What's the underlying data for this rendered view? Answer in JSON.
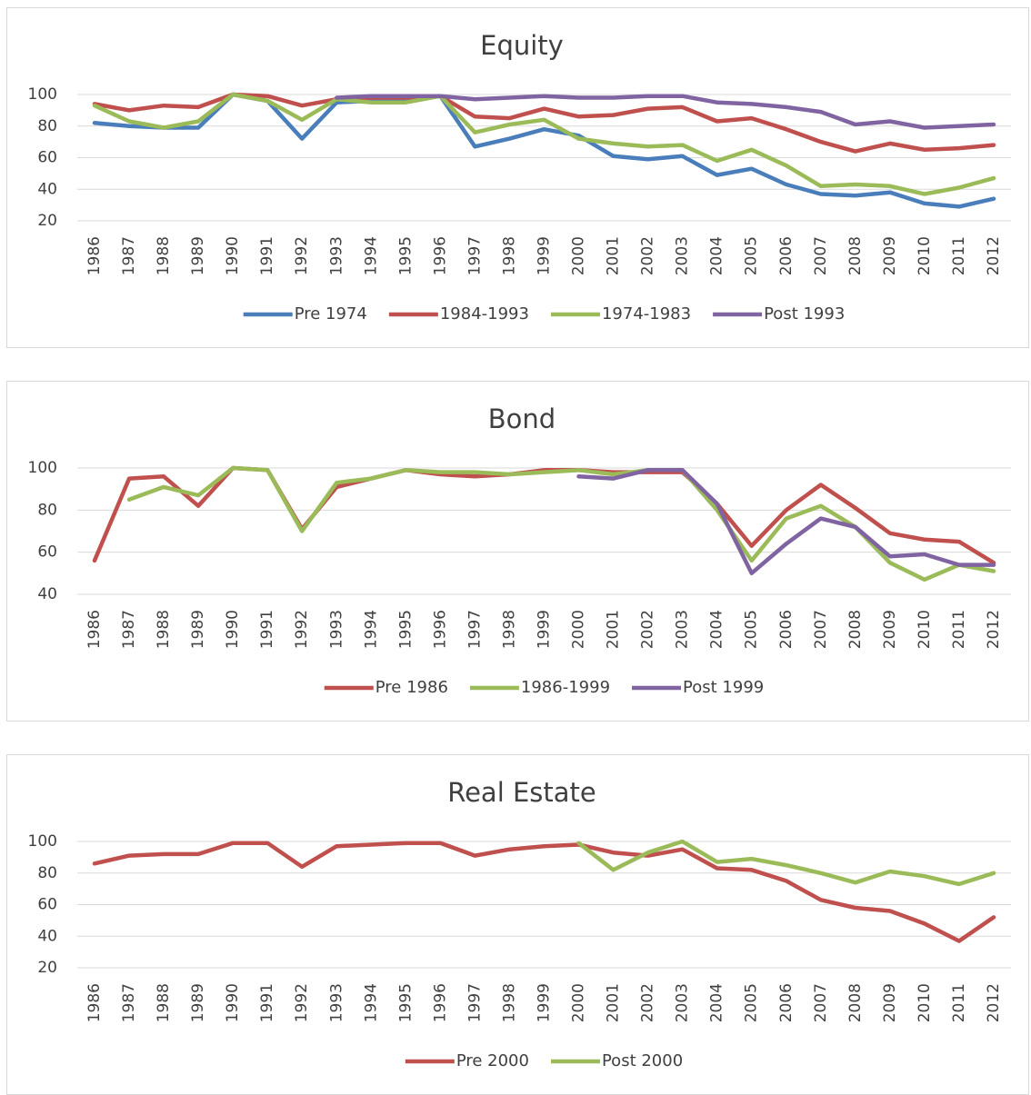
{
  "chart_data": [
    {
      "type": "line",
      "title": "Equity",
      "categories": [
        "1986",
        "1987",
        "1988",
        "1989",
        "1990",
        "1991",
        "1992",
        "1993",
        "1994",
        "1995",
        "1996",
        "1997",
        "1998",
        "1999",
        "2000",
        "2001",
        "2002",
        "2003",
        "2004",
        "2005",
        "2006",
        "2007",
        "2008",
        "2009",
        "2010",
        "2011",
        "2012"
      ],
      "series": [
        {
          "name": "Pre 1974",
          "color": "#4a7ebb",
          "values": [
            82,
            80,
            79,
            79,
            100,
            96,
            72,
            95,
            96,
            97,
            99,
            67,
            72,
            78,
            74,
            61,
            59,
            61,
            49,
            53,
            43,
            37,
            36,
            38,
            31,
            29,
            34
          ]
        },
        {
          "name": "1984-1993",
          "color": "#c0504d",
          "values": [
            94,
            90,
            93,
            92,
            100,
            99,
            93,
            97,
            98,
            98,
            99,
            86,
            85,
            91,
            86,
            87,
            91,
            92,
            83,
            85,
            78,
            70,
            64,
            69,
            65,
            66,
            68
          ]
        },
        {
          "name": "1974-1983",
          "color": "#9bbb59",
          "values": [
            93,
            83,
            79,
            83,
            100,
            96,
            84,
            97,
            95,
            95,
            99,
            76,
            81,
            84,
            72,
            69,
            67,
            68,
            58,
            65,
            55,
            42,
            43,
            42,
            37,
            41,
            47
          ]
        },
        {
          "name": "Post 1993",
          "color": "#8064a2",
          "values": [
            null,
            null,
            null,
            null,
            null,
            null,
            null,
            98,
            99,
            99,
            99,
            97,
            98,
            99,
            98,
            98,
            99,
            99,
            95,
            94,
            92,
            89,
            81,
            83,
            79,
            80,
            81
          ]
        }
      ],
      "ylim": [
        20,
        100
      ],
      "yticks": [
        20,
        40,
        60,
        80,
        100
      ],
      "grid": true,
      "legend": "bottom"
    },
    {
      "type": "line",
      "title": "Bond",
      "categories": [
        "1986",
        "1987",
        "1988",
        "1989",
        "1990",
        "1991",
        "1992",
        "1993",
        "1994",
        "1995",
        "1996",
        "1997",
        "1998",
        "1999",
        "2000",
        "2001",
        "2002",
        "2003",
        "2004",
        "2005",
        "2006",
        "2007",
        "2008",
        "2009",
        "2010",
        "2011",
        "2012"
      ],
      "series": [
        {
          "name": "Pre 1986",
          "color": "#c0504d",
          "values": [
            56,
            95,
            96,
            82,
            100,
            99,
            71,
            91,
            95,
            99,
            97,
            96,
            97,
            99,
            99,
            98,
            98,
            98,
            83,
            63,
            80,
            92,
            81,
            69,
            66,
            65,
            55
          ]
        },
        {
          "name": "1986-1999",
          "color": "#9bbb59",
          "values": [
            null,
            85,
            91,
            87,
            100,
            99,
            70,
            93,
            95,
            99,
            98,
            98,
            97,
            98,
            99,
            97,
            99,
            99,
            80,
            56,
            76,
            82,
            72,
            55,
            47,
            54,
            51
          ]
        },
        {
          "name": "Post 1999",
          "color": "#8064a2",
          "values": [
            null,
            null,
            null,
            null,
            null,
            null,
            null,
            null,
            null,
            null,
            null,
            null,
            null,
            null,
            96,
            95,
            99,
            99,
            83,
            50,
            64,
            76,
            72,
            58,
            59,
            54,
            54
          ]
        }
      ],
      "ylim": [
        40,
        100
      ],
      "yticks": [
        40,
        60,
        80,
        100
      ],
      "grid": true,
      "legend": "bottom"
    },
    {
      "type": "line",
      "title": "Real Estate",
      "categories": [
        "1986",
        "1987",
        "1988",
        "1989",
        "1990",
        "1991",
        "1992",
        "1993",
        "1994",
        "1995",
        "1996",
        "1997",
        "1998",
        "1999",
        "2000",
        "2001",
        "2002",
        "2003",
        "2004",
        "2005",
        "2006",
        "2007",
        "2008",
        "2009",
        "2010",
        "2011",
        "2012"
      ],
      "series": [
        {
          "name": "Pre 2000",
          "color": "#c0504d",
          "values": [
            86,
            91,
            92,
            92,
            99,
            99,
            84,
            97,
            98,
            99,
            99,
            91,
            95,
            97,
            98,
            93,
            91,
            95,
            83,
            82,
            75,
            63,
            58,
            56,
            48,
            37,
            52
          ]
        },
        {
          "name": "Post 2000",
          "color": "#9bbb59",
          "values": [
            null,
            null,
            null,
            null,
            null,
            null,
            null,
            null,
            null,
            null,
            null,
            null,
            null,
            null,
            99,
            82,
            93,
            100,
            87,
            89,
            85,
            80,
            74,
            81,
            78,
            73,
            80
          ]
        }
      ],
      "ylim": [
        20,
        100
      ],
      "yticks": [
        20,
        40,
        60,
        80,
        100
      ],
      "grid": true,
      "legend": "bottom"
    }
  ]
}
